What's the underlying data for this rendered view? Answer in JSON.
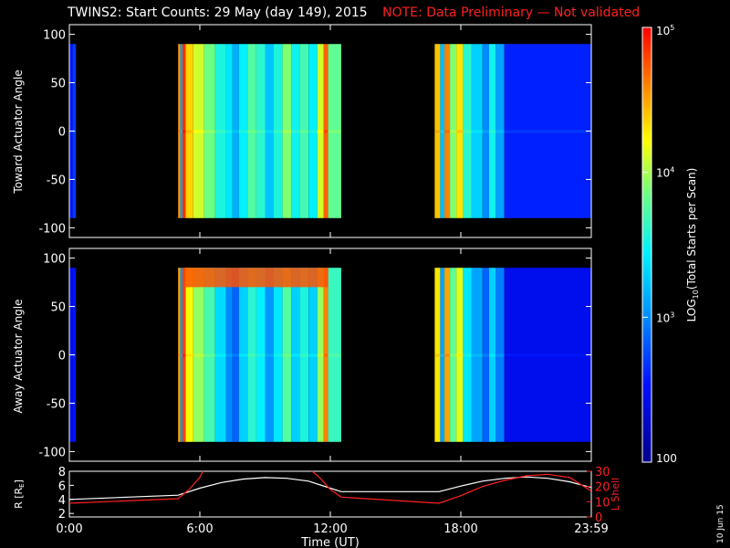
{
  "header": {
    "title": "TWINS2: Start Counts: 29 May (day 149), 2015",
    "note": "NOTE: Data Preliminary — Not validated"
  },
  "stamp": "10 Jun 15",
  "chart_data": [
    {
      "type": "heatmap",
      "panel": "toward",
      "ylabel": "Toward Actuator Angle",
      "ylim": [
        -110,
        110
      ],
      "yticks": [
        -100,
        -50,
        0,
        50,
        100
      ],
      "x_unit": "hours UT",
      "columns": [
        {
          "t0": 0.0,
          "t1": 0.15,
          "log": 2.55
        },
        {
          "t0": 0.15,
          "t1": 0.3,
          "log": 2.7
        },
        {
          "t0": 5.0,
          "t1": 5.1,
          "log": 4.55
        },
        {
          "t0": 5.1,
          "t1": 5.2,
          "log": 3.1
        },
        {
          "t0": 5.2,
          "t1": 5.35,
          "log": 4.85
        },
        {
          "t0": 5.35,
          "t1": 5.7,
          "log": 4.35
        },
        {
          "t0": 5.7,
          "t1": 6.2,
          "log": 4.1
        },
        {
          "t0": 6.2,
          "t1": 6.7,
          "log": 3.85
        },
        {
          "t0": 6.7,
          "t1": 7.2,
          "log": 3.55
        },
        {
          "t0": 7.2,
          "t1": 7.5,
          "log": 3.4
        },
        {
          "t0": 7.5,
          "t1": 7.8,
          "log": 3.15
        },
        {
          "t0": 7.8,
          "t1": 8.2,
          "log": 3.45
        },
        {
          "t0": 8.2,
          "t1": 8.6,
          "log": 3.75
        },
        {
          "t0": 8.6,
          "t1": 9.0,
          "log": 3.6
        },
        {
          "t0": 9.0,
          "t1": 9.4,
          "log": 3.25
        },
        {
          "t0": 9.4,
          "t1": 9.8,
          "log": 3.55
        },
        {
          "t0": 9.8,
          "t1": 10.2,
          "log": 3.9
        },
        {
          "t0": 10.2,
          "t1": 10.6,
          "log": 3.5
        },
        {
          "t0": 10.6,
          "t1": 11.0,
          "log": 3.7
        },
        {
          "t0": 11.0,
          "t1": 11.4,
          "log": 3.45
        },
        {
          "t0": 11.4,
          "t1": 11.7,
          "log": 4.1
        },
        {
          "t0": 11.7,
          "t1": 11.9,
          "log": 4.7
        },
        {
          "t0": 11.9,
          "t1": 12.5,
          "log": 3.8
        },
        {
          "t0": 16.8,
          "t1": 17.05,
          "log": 4.4
        },
        {
          "t0": 17.05,
          "t1": 17.25,
          "log": 3.2
        },
        {
          "t0": 17.25,
          "t1": 17.5,
          "log": 4.6
        },
        {
          "t0": 17.5,
          "t1": 17.8,
          "log": 3.9
        },
        {
          "t0": 17.8,
          "t1": 18.1,
          "log": 4.3
        },
        {
          "t0": 18.1,
          "t1": 18.5,
          "log": 3.6
        },
        {
          "t0": 18.5,
          "t1": 19.0,
          "log": 3.3
        },
        {
          "t0": 19.0,
          "t1": 19.3,
          "log": 3.0
        },
        {
          "t0": 19.3,
          "t1": 19.6,
          "log": 3.5
        },
        {
          "t0": 19.6,
          "t1": 20.0,
          "log": 3.1
        },
        {
          "t0": 20.0,
          "t1": 24.0,
          "log": 2.6
        }
      ]
    },
    {
      "type": "heatmap",
      "panel": "away",
      "ylabel": "Away Actuator Angle",
      "ylim": [
        -110,
        110
      ],
      "yticks": [
        -100,
        -50,
        0,
        50,
        100
      ],
      "x_unit": "hours UT",
      "columns": [
        {
          "t0": 0.0,
          "t1": 0.15,
          "log": 2.45
        },
        {
          "t0": 0.15,
          "t1": 0.3,
          "log": 2.55
        },
        {
          "t0": 5.0,
          "t1": 5.1,
          "log": 4.5
        },
        {
          "t0": 5.1,
          "t1": 5.2,
          "log": 3.05
        },
        {
          "t0": 5.2,
          "t1": 5.35,
          "log": 4.8
        },
        {
          "t0": 5.35,
          "t1": 5.7,
          "log": 4.2
        },
        {
          "t0": 5.7,
          "t1": 6.2,
          "log": 3.95
        },
        {
          "t0": 6.2,
          "t1": 6.7,
          "log": 3.7
        },
        {
          "t0": 6.7,
          "t1": 7.2,
          "log": 3.35
        },
        {
          "t0": 7.2,
          "t1": 7.5,
          "log": 3.0
        },
        {
          "t0": 7.5,
          "t1": 7.8,
          "log": 2.85
        },
        {
          "t0": 7.8,
          "t1": 8.2,
          "log": 3.3
        },
        {
          "t0": 8.2,
          "t1": 8.6,
          "log": 3.6
        },
        {
          "t0": 8.6,
          "t1": 9.0,
          "log": 3.45
        },
        {
          "t0": 9.0,
          "t1": 9.4,
          "log": 3.05
        },
        {
          "t0": 9.4,
          "t1": 9.8,
          "log": 3.4
        },
        {
          "t0": 9.8,
          "t1": 10.2,
          "log": 3.75
        },
        {
          "t0": 10.2,
          "t1": 10.6,
          "log": 3.3
        },
        {
          "t0": 10.6,
          "t1": 11.0,
          "log": 3.55
        },
        {
          "t0": 11.0,
          "t1": 11.4,
          "log": 3.3
        },
        {
          "t0": 11.4,
          "t1": 11.7,
          "log": 3.95
        },
        {
          "t0": 11.7,
          "t1": 11.9,
          "log": 4.6
        },
        {
          "t0": 11.9,
          "t1": 12.5,
          "log": 3.65
        },
        {
          "t0": 16.8,
          "t1": 17.05,
          "log": 4.3
        },
        {
          "t0": 17.05,
          "t1": 17.25,
          "log": 3.1
        },
        {
          "t0": 17.25,
          "t1": 17.5,
          "log": 4.5
        },
        {
          "t0": 17.5,
          "t1": 17.8,
          "log": 3.8
        },
        {
          "t0": 17.8,
          "t1": 18.1,
          "log": 4.15
        },
        {
          "t0": 18.1,
          "t1": 18.5,
          "log": 3.4
        },
        {
          "t0": 18.5,
          "t1": 19.0,
          "log": 3.1
        },
        {
          "t0": 19.0,
          "t1": 19.3,
          "log": 2.85
        },
        {
          "t0": 19.3,
          "t1": 19.6,
          "log": 3.3
        },
        {
          "t0": 19.6,
          "t1": 20.0,
          "log": 2.95
        },
        {
          "t0": 20.0,
          "t1": 24.0,
          "log": 2.45
        }
      ],
      "enhanced_band": {
        "y0": 70,
        "y1": 90,
        "t0": 5.3,
        "t1": 11.9,
        "log": 4.75
      }
    },
    {
      "type": "line",
      "panel": "orbit",
      "ylabel_left": "R [R",
      "ylabel_left_sub": "E",
      "ylabel_left_close": "]",
      "ylabel_right": "L Shell",
      "ylim_left": [
        1.5,
        8
      ],
      "yticks_left": [
        2,
        4,
        6,
        8
      ],
      "ylim_right": [
        0,
        30
      ],
      "yticks_right": [
        0,
        10,
        20,
        30
      ],
      "series": [
        {
          "axis": "left",
          "color": "#ffffff",
          "x": [
            0,
            5,
            6,
            7,
            8,
            9,
            10,
            11,
            12,
            12.5,
            17,
            18,
            19,
            20,
            21,
            22,
            23,
            24
          ],
          "y": [
            4.0,
            4.6,
            5.6,
            6.4,
            6.9,
            7.1,
            7.0,
            6.6,
            5.6,
            5.1,
            5.1,
            5.9,
            6.6,
            7.0,
            7.2,
            7.0,
            6.5,
            5.7
          ]
        },
        {
          "axis": "right",
          "color": "#ff2020",
          "x": [
            0,
            5,
            5.5,
            6,
            6.2,
            11.0,
            11.5,
            12,
            12.5,
            17,
            18,
            19,
            20,
            21,
            22,
            23,
            24
          ],
          "y": [
            9,
            12,
            18,
            26,
            32,
            32,
            26,
            18,
            13,
            9,
            14,
            20,
            24,
            27,
            28,
            26,
            17
          ]
        }
      ]
    },
    {
      "type": "colorbar",
      "label_main": "LOG",
      "label_sub": "10",
      "label_rest": "(Total Starts per Scan)",
      "scale": "log",
      "range": [
        100,
        100000
      ],
      "tick_values": [
        100,
        1000,
        10000,
        100000
      ],
      "tick_labels": [
        {
          "base": "100",
          "exp": ""
        },
        {
          "base": "10",
          "exp": "3"
        },
        {
          "base": "10",
          "exp": "4"
        },
        {
          "base": "10",
          "exp": "5"
        }
      ]
    }
  ],
  "x_axis": {
    "label": "Time (UT)",
    "range": [
      0,
      24
    ],
    "tick_values": [
      0,
      6,
      12,
      18,
      24
    ],
    "tick_labels": [
      "0:00",
      "6:00",
      "12:00",
      "18:00",
      "23:59"
    ]
  }
}
